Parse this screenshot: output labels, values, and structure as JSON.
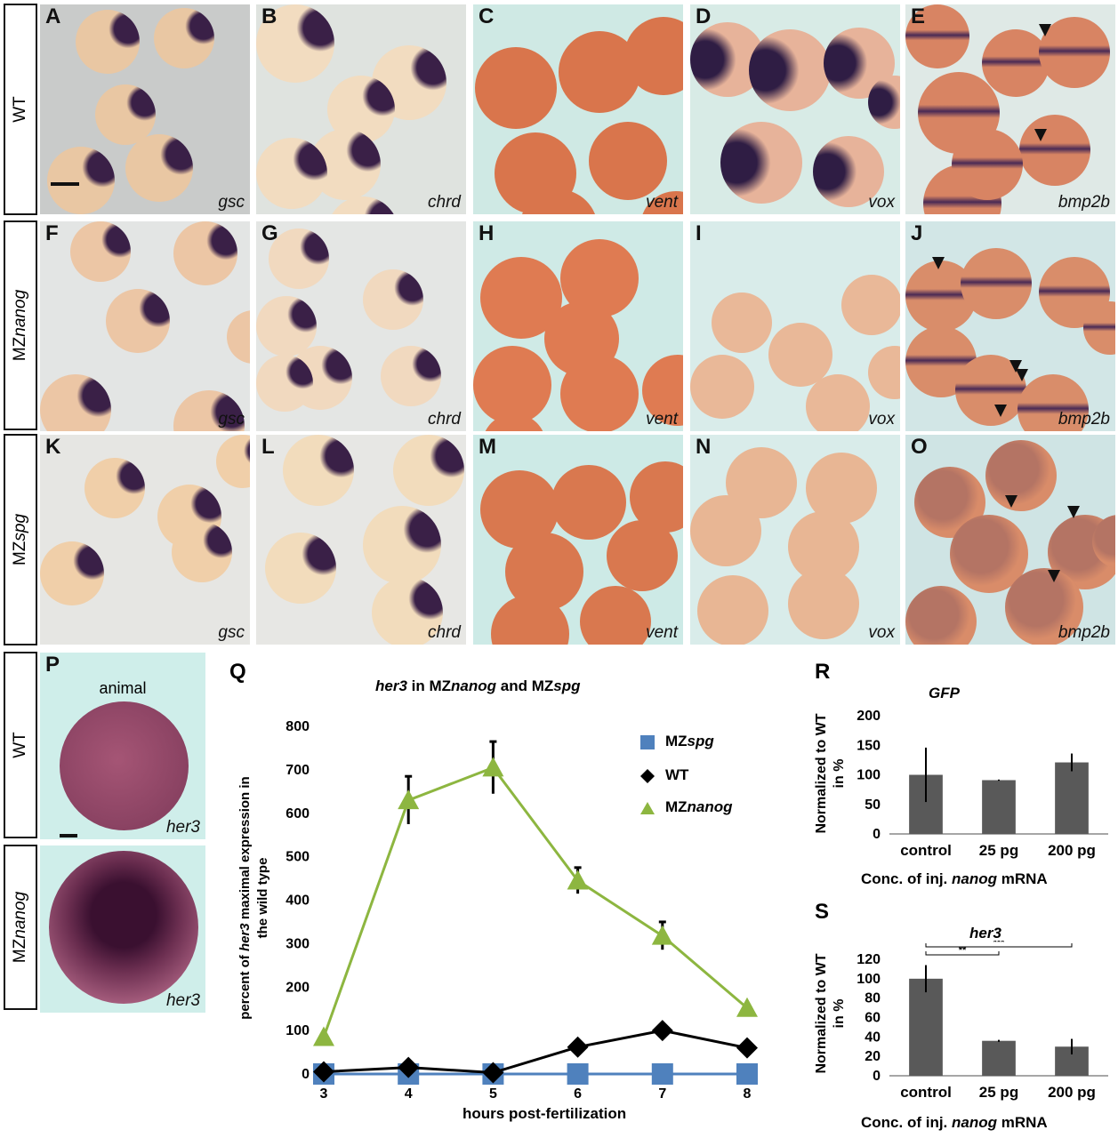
{
  "rows": [
    {
      "label_plain": "WT",
      "label_prefix": "",
      "label_italic": ""
    },
    {
      "label_plain": "",
      "label_prefix": "MZ",
      "label_italic": "nanog"
    },
    {
      "label_plain": "",
      "label_prefix": "MZ",
      "label_italic": "spg"
    }
  ],
  "panels": [
    {
      "letter": "A",
      "gene": "gsc"
    },
    {
      "letter": "B",
      "gene": "chrd"
    },
    {
      "letter": "C",
      "gene": "vent"
    },
    {
      "letter": "D",
      "gene": "vox"
    },
    {
      "letter": "E",
      "gene": "bmp2b"
    },
    {
      "letter": "F",
      "gene": "gsc"
    },
    {
      "letter": "G",
      "gene": "chrd"
    },
    {
      "letter": "H",
      "gene": "vent"
    },
    {
      "letter": "I",
      "gene": "vox"
    },
    {
      "letter": "J",
      "gene": "bmp2b"
    },
    {
      "letter": "K",
      "gene": "gsc"
    },
    {
      "letter": "L",
      "gene": "chrd"
    },
    {
      "letter": "M",
      "gene": "vent"
    },
    {
      "letter": "N",
      "gene": "vox"
    },
    {
      "letter": "O",
      "gene": "bmp2b"
    }
  ],
  "panel_p": {
    "letter": "P",
    "animal_label": "animal",
    "top_label": "WT",
    "bottom_label_prefix": "MZ",
    "bottom_label_italic": "nanog",
    "gene_top": "her3",
    "gene_bottom": "her3"
  },
  "colors": {
    "wt": "#000000",
    "mznanog": "#8db640",
    "mzspg": "#4f81bd",
    "bar": "#595959"
  },
  "chart_data": [
    {
      "panel": "Q",
      "type": "line",
      "title_gene": "her3",
      "title_mid": " in MZ",
      "title_g2": "nanog",
      "title_and": " and MZ",
      "title_g3": "spg",
      "ylabel_line1_pre": "percent of ",
      "ylabel_line1_gene": "her3",
      "ylabel_line1_post": " maximal expression in",
      "ylabel_line2": "the wild type",
      "xlabel": "hours post-fertilization",
      "x": [
        3,
        4,
        5,
        6,
        7,
        8
      ],
      "ylim": [
        0,
        800
      ],
      "yticks": [
        0,
        100,
        200,
        300,
        400,
        500,
        600,
        700,
        800
      ],
      "series": [
        {
          "key": "mzspg",
          "name_prefix": "MZ",
          "name_italic": "spg",
          "marker": "square",
          "values": [
            0,
            0,
            0,
            0,
            0,
            0
          ],
          "err": [
            0,
            0,
            0,
            0,
            0,
            0
          ]
        },
        {
          "key": "wt",
          "name_prefix": "WT",
          "name_italic": "",
          "marker": "diamond",
          "values": [
            5,
            15,
            3,
            62,
            100,
            60
          ],
          "err": [
            0,
            0,
            0,
            0,
            0,
            0
          ]
        },
        {
          "key": "mznanog",
          "name_prefix": "MZ",
          "name_italic": "nanog",
          "marker": "triangle",
          "values": [
            85,
            630,
            705,
            445,
            318,
            152
          ],
          "err": [
            0,
            55,
            60,
            30,
            32,
            0
          ]
        }
      ]
    },
    {
      "panel": "R",
      "type": "bar",
      "title": "GFP",
      "ylabel_line1": "Normalized to WT",
      "ylabel_line2": "in %",
      "xlabel_pre": "Conc. of inj. ",
      "xlabel_gene": "nanog",
      "xlabel_post": " mRNA",
      "categories": [
        "control",
        "25 pg",
        "200 pg"
      ],
      "values": [
        100,
        91,
        121
      ],
      "err": [
        46,
        1,
        15
      ],
      "ylim": [
        0,
        200
      ],
      "yticks": [
        0,
        50,
        100,
        150,
        200
      ]
    },
    {
      "panel": "S",
      "type": "bar",
      "title": "her3",
      "ylabel_line1": "Normalized to WT",
      "ylabel_line2": "in %",
      "xlabel_pre": "Conc. of inj. ",
      "xlabel_gene": "nanog",
      "xlabel_post": " mRNA",
      "categories": [
        "control",
        "25 pg",
        "200 pg"
      ],
      "values": [
        100,
        36,
        30
      ],
      "err": [
        14,
        1,
        8
      ],
      "ylim": [
        0,
        120
      ],
      "yticks": [
        0,
        20,
        40,
        60,
        80,
        100,
        120
      ],
      "significance": [
        {
          "from": "control",
          "to": "25 pg",
          "label": "**"
        },
        {
          "from": "control",
          "to": "200 pg",
          "label": "***"
        }
      ]
    }
  ]
}
